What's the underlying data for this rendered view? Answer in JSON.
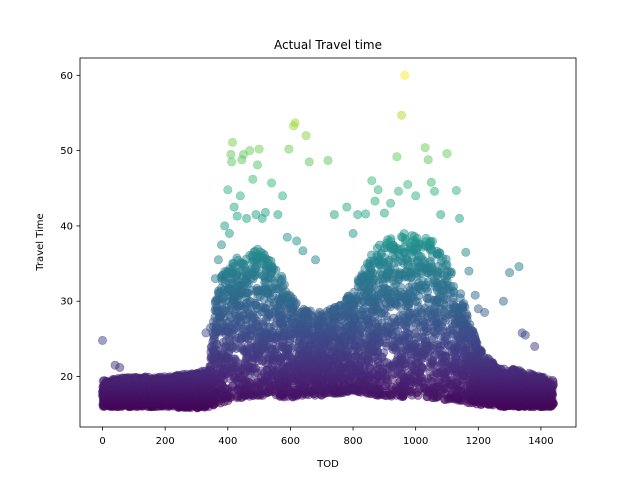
{
  "chart_data": {
    "type": "scatter",
    "title": "Actual Travel time",
    "xlabel": "TOD",
    "ylabel": "Travel Time",
    "xlim": [
      -72,
      1512
    ],
    "ylim": [
      13.3,
      62.3
    ],
    "xticks": [
      0,
      200,
      400,
      600,
      800,
      1000,
      1200,
      1400
    ],
    "yticks": [
      20,
      30,
      40,
      50,
      60
    ],
    "grid": false,
    "legend": "none",
    "colormap": "viridis",
    "color_by": "y",
    "color_range": [
      15.5,
      60
    ],
    "marker_alpha": 0.5,
    "density_profile": {
      "x": [
        0,
        100,
        200,
        300,
        340,
        360,
        380,
        420,
        460,
        500,
        540,
        570,
        600,
        640,
        700,
        760,
        800,
        840,
        880,
        920,
        960,
        1000,
        1040,
        1080,
        1120,
        1160,
        1200,
        1240,
        1280,
        1320,
        1360,
        1400,
        1440
      ],
      "lower": [
        16.0,
        16.0,
        16.0,
        15.8,
        16.0,
        16.2,
        16.5,
        17.0,
        17.3,
        17.5,
        17.5,
        17.3,
        17.2,
        17.3,
        17.5,
        17.8,
        18.0,
        17.8,
        17.5,
        17.4,
        17.3,
        17.3,
        17.3,
        17.0,
        16.8,
        16.5,
        16.3,
        16.2,
        16.0,
        16.0,
        16.0,
        16.0,
        16.0
      ],
      "upper": [
        19.5,
        20.0,
        20.0,
        20.5,
        21.0,
        30.0,
        33.5,
        35.5,
        36.5,
        37.0,
        36.0,
        33.5,
        31.0,
        29.0,
        28.5,
        29.5,
        31.5,
        35.0,
        37.5,
        38.5,
        39.0,
        39.0,
        38.5,
        37.0,
        34.0,
        29.0,
        24.0,
        22.0,
        21.0,
        21.0,
        20.5,
        20.0,
        19.5
      ]
    },
    "outliers": [
      [
        0,
        24.8
      ],
      [
        40,
        21.5
      ],
      [
        55,
        21.2
      ],
      [
        330,
        25.8
      ],
      [
        345,
        26.5
      ],
      [
        360,
        33.0
      ],
      [
        370,
        35.5
      ],
      [
        380,
        37.5
      ],
      [
        390,
        40.0
      ],
      [
        400,
        44.8
      ],
      [
        405,
        39.0
      ],
      [
        410,
        49.5
      ],
      [
        412,
        48.5
      ],
      [
        415,
        51.1
      ],
      [
        420,
        42.5
      ],
      [
        430,
        41.3
      ],
      [
        440,
        44.0
      ],
      [
        445,
        48.8
      ],
      [
        450,
        49.5
      ],
      [
        460,
        41.0
      ],
      [
        470,
        50.0
      ],
      [
        480,
        46.2
      ],
      [
        490,
        41.5
      ],
      [
        495,
        48.1
      ],
      [
        500,
        50.2
      ],
      [
        510,
        41.0
      ],
      [
        520,
        41.8
      ],
      [
        540,
        45.7
      ],
      [
        560,
        41.5
      ],
      [
        575,
        44.0
      ],
      [
        590,
        38.5
      ],
      [
        595,
        50.2
      ],
      [
        610,
        53.3
      ],
      [
        615,
        53.7
      ],
      [
        620,
        38.0
      ],
      [
        640,
        36.7
      ],
      [
        650,
        52.0
      ],
      [
        660,
        48.5
      ],
      [
        680,
        35.5
      ],
      [
        720,
        48.7
      ],
      [
        740,
        41.5
      ],
      [
        780,
        42.5
      ],
      [
        800,
        39.0
      ],
      [
        815,
        41.5
      ],
      [
        840,
        41.6
      ],
      [
        860,
        46.0
      ],
      [
        870,
        43.3
      ],
      [
        880,
        44.8
      ],
      [
        900,
        41.7
      ],
      [
        920,
        43.0
      ],
      [
        940,
        49.2
      ],
      [
        945,
        44.6
      ],
      [
        955,
        54.7
      ],
      [
        965,
        60.0
      ],
      [
        975,
        45.5
      ],
      [
        1000,
        44.0
      ],
      [
        1030,
        50.4
      ],
      [
        1040,
        48.8
      ],
      [
        1050,
        45.8
      ],
      [
        1060,
        44.6
      ],
      [
        1080,
        41.5
      ],
      [
        1100,
        49.6
      ],
      [
        1130,
        44.7
      ],
      [
        1140,
        41.0
      ],
      [
        1160,
        36.5
      ],
      [
        1170,
        34.0
      ],
      [
        1190,
        30.8
      ],
      [
        1200,
        29.0
      ],
      [
        1220,
        28.5
      ],
      [
        1280,
        30.0
      ],
      [
        1300,
        33.8
      ],
      [
        1330,
        34.6
      ],
      [
        1340,
        25.8
      ],
      [
        1350,
        25.5
      ],
      [
        1380,
        24.0
      ]
    ]
  }
}
